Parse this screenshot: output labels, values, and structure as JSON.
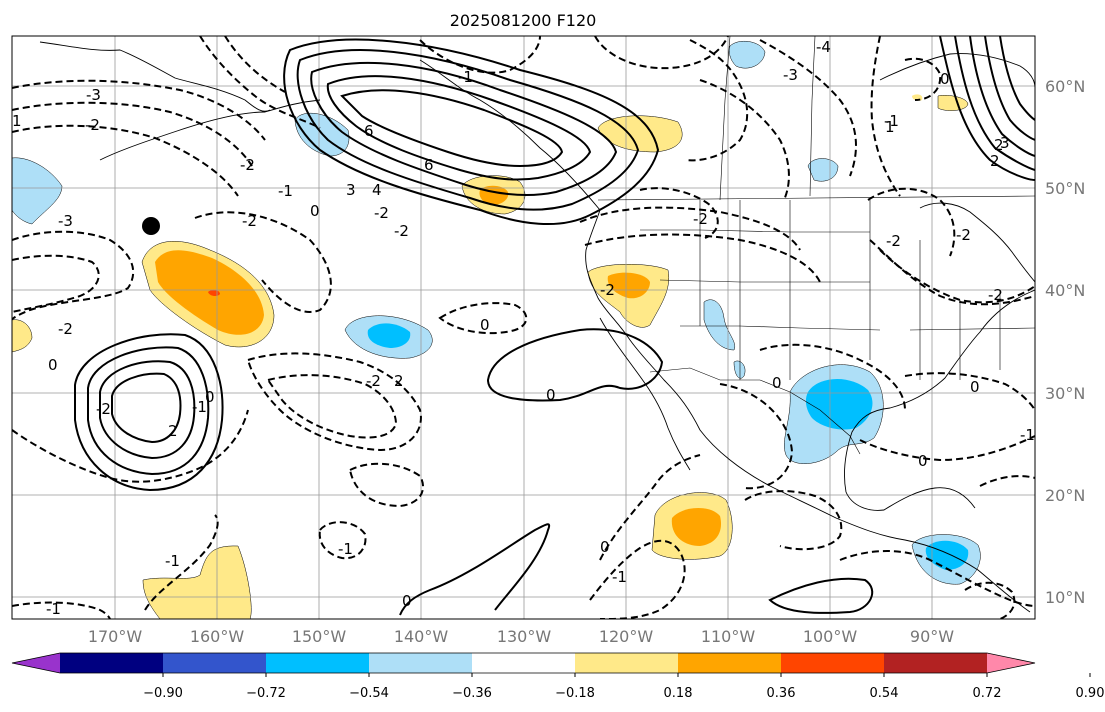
{
  "title": "2025081200 F120",
  "latitude_labels": [
    "60°N",
    "50°N",
    "40°N",
    "30°N",
    "20°N",
    "10°N"
  ],
  "longitude_labels": [
    "170°W",
    "160°W",
    "150°W",
    "140°W",
    "130°W",
    "120°W",
    "110°W",
    "100°W",
    "90°W"
  ],
  "colorbar": {
    "colors": [
      "#9933cc",
      "#000080",
      "#3355cc",
      "#00bfff",
      "#aedff7",
      "#ffffff",
      "#ffe989",
      "#ffa500",
      "#ff4500",
      "#b22222",
      "#ff88aa"
    ],
    "tick_labels": [
      "−0.90",
      "−0.72",
      "−0.54",
      "−0.36",
      "−0.18",
      "0.18",
      "0.36",
      "0.54",
      "0.72",
      "0.90"
    ]
  },
  "contour_labels": {
    "c1": "-3",
    "c2": "-2",
    "c3": "1",
    "c4": "-3",
    "c5": "-2",
    "c6": "-2",
    "c7": "-1",
    "c8": "0",
    "c9": "3",
    "c10": "4",
    "c11": "-2",
    "c12": "-2",
    "c13": "6",
    "c14": "6",
    "c15": "-1",
    "c16": "-4",
    "c17": "-3",
    "c18": "-2",
    "c19": "0",
    "c20": "1",
    "c21": "2",
    "c22": "3",
    "c23": "-2",
    "c24": "-2",
    "c25": "0",
    "c26": "-2",
    "c27": "-2",
    "c28": "0",
    "c29": "2",
    "c30": "-2",
    "c31": "-1",
    "c32": "0",
    "c33": "2",
    "c34": "-2",
    "c35": "0",
    "c36": "0",
    "c37": "0",
    "c38": "-1",
    "c39": "-1",
    "c40": "-1",
    "c41": "0",
    "c42": "-1",
    "c43": "0",
    "c44": "-1",
    "c45": "2",
    "c46": "-2",
    "c47": "0",
    "c48": "-1"
  }
}
